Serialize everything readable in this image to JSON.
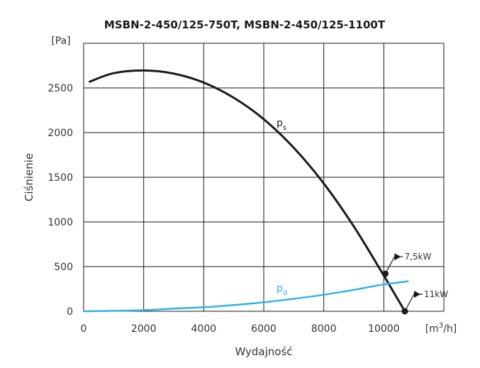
{
  "chart_data": {
    "type": "line",
    "title": "MSBN-2-450/125-750T, MSBN-2-450/125-1100T",
    "xlabel": "Wydajność",
    "ylabel": "Ciśnienie",
    "x_unit_prefix": "[m",
    "x_unit_sup": "3",
    "x_unit_suffix": "/h]",
    "y_unit": "[Pa]",
    "xlim": [
      0,
      12000
    ],
    "ylim": [
      0,
      3000
    ],
    "x_ticks": [
      0,
      2000,
      4000,
      6000,
      8000,
      10000
    ],
    "x_tick_labels": [
      "0",
      "2000",
      "4000",
      "6000",
      "8000",
      "10000"
    ],
    "y_ticks": [
      0,
      500,
      1000,
      1500,
      2000,
      2500
    ],
    "y_tick_labels": [
      "0",
      "500",
      "1000",
      "1500",
      "2000",
      "2500"
    ],
    "grid": true,
    "series": [
      {
        "name": "ps",
        "label_main": "p",
        "label_sub": "s",
        "color": "#1a1a1a",
        "x": [
          200,
          1000,
          2000,
          3000,
          4000,
          5000,
          6000,
          7000,
          8000,
          9000,
          10000,
          10700
        ],
        "y": [
          2570,
          2665,
          2695,
          2660,
          2560,
          2390,
          2150,
          1830,
          1430,
          950,
          400,
          0
        ]
      },
      {
        "name": "pd",
        "label_main": "p",
        "label_sub": "d",
        "color": "#2fb4e6",
        "x": [
          0,
          1000,
          2000,
          3000,
          4000,
          5000,
          6000,
          7000,
          8000,
          9000,
          10000,
          10800
        ],
        "y": [
          0,
          5,
          12,
          30,
          45,
          70,
          100,
          140,
          185,
          240,
          300,
          335
        ]
      }
    ],
    "operating_points": [
      {
        "label": "7,5kW",
        "x": 10050,
        "y": 420
      },
      {
        "label": "11kW",
        "x": 10700,
        "y": 0
      }
    ]
  }
}
